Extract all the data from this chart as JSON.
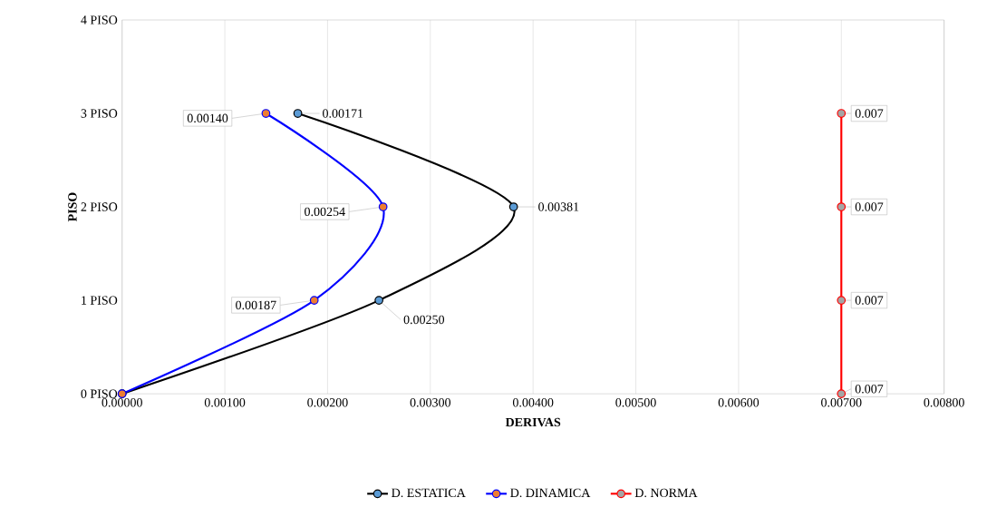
{
  "chart_data": {
    "type": "line",
    "orientation": "horizontal",
    "xlabel": "DERIVAS",
    "ylabel": "PISO",
    "categories": [
      "4 PISO",
      "3 PISO",
      "2 PISO",
      "1 PISO",
      "0 PISO"
    ],
    "xlim": [
      0,
      0.008
    ],
    "xticks": [
      {
        "value": 0,
        "label": "0.00000"
      },
      {
        "value": 0.001,
        "label": "0.00100"
      },
      {
        "value": 0.002,
        "label": "0.00200"
      },
      {
        "value": 0.003,
        "label": "0.00300"
      },
      {
        "value": 0.004,
        "label": "0.00400"
      },
      {
        "value": 0.005,
        "label": "0.00500"
      },
      {
        "value": 0.006,
        "label": "0.00600"
      },
      {
        "value": 0.007,
        "label": "0.00700"
      },
      {
        "value": 0.008,
        "label": "0.00800"
      }
    ],
    "grid": "x",
    "legend": "bottom",
    "marker": "circle",
    "line_style": "solid",
    "series": [
      {
        "name": "D. ESTATICA",
        "color": "#000000",
        "colors": [
          null,
          "#5b9bd5",
          "#5b9bd5",
          "#5b9bd5",
          "#5b9bd5"
        ],
        "values": [
          null,
          0.00171,
          0.00381,
          0.0025,
          0
        ],
        "value_labels": [
          null,
          "0.00171",
          "0.00381",
          "0.00250",
          null
        ]
      },
      {
        "name": "D. DINAMICA",
        "color": "#0000ff",
        "colors": [
          null,
          "#ed7d31",
          "#ed7d31",
          "#ed7d31",
          "#ed7d31"
        ],
        "values": [
          null,
          0.0014,
          0.00254,
          0.00187,
          0
        ],
        "value_labels": [
          null,
          "0.00140",
          "0.00254",
          "0.00187",
          null
        ]
      },
      {
        "name": "D. NORMA",
        "color": "#ff0000",
        "colors": [
          null,
          "#a5a5a5",
          "#a5a5a5",
          "#a5a5a5",
          "#a5a5a5"
        ],
        "values": [
          null,
          0.007,
          0.007,
          0.007,
          0.007
        ],
        "value_labels": [
          null,
          "0.007",
          "0.007",
          "0.007",
          "0.007"
        ]
      }
    ]
  }
}
